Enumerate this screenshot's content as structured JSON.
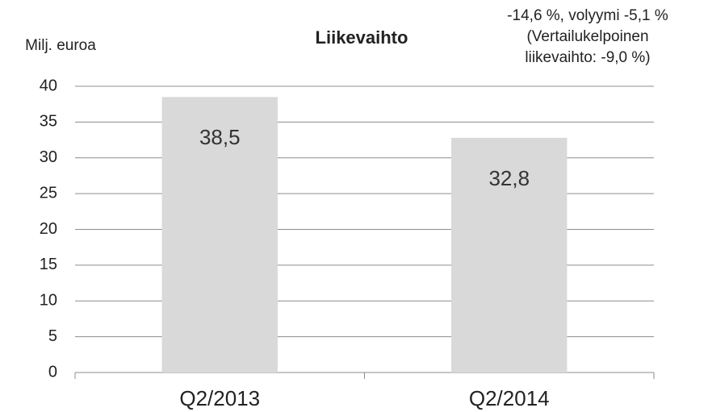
{
  "chart_data": {
    "type": "bar",
    "title": "Liikevaihto",
    "y_axis_label": "Milj. euroa",
    "annotation": [
      "-14,6 %, volyymi -5,1 %",
      "(Vertailukelpoinen",
      "liikevaihto: -9,0 %)"
    ],
    "categories": [
      "Q2/2013",
      "Q2/2014"
    ],
    "values": [
      38.5,
      32.8
    ],
    "value_labels": [
      "38,5",
      "32,8"
    ],
    "color": "#d9d9d9",
    "ylim": [
      0,
      40
    ],
    "yticks": [
      0,
      5,
      10,
      15,
      20,
      25,
      30,
      35,
      40
    ],
    "grid": true
  }
}
